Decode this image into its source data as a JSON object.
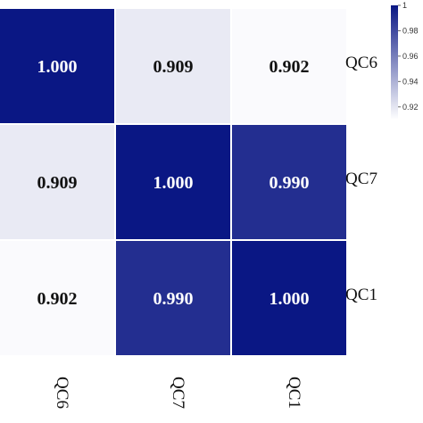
{
  "chart_data": {
    "type": "heatmap",
    "rows": [
      "QC6",
      "QC7",
      "QC1"
    ],
    "columns": [
      "QC6",
      "QC7",
      "QC1"
    ],
    "values": [
      [
        1.0,
        0.909,
        0.902
      ],
      [
        0.909,
        1.0,
        0.99
      ],
      [
        0.902,
        0.99,
        1.0
      ]
    ],
    "value_labels": [
      [
        "1.000",
        "0.909",
        "0.902"
      ],
      [
        "0.909",
        "1.000",
        "0.990"
      ],
      [
        "0.902",
        "0.990",
        "1.000"
      ]
    ],
    "colorscale": {
      "min": 0.9,
      "max": 1.0,
      "low_color": "#ffffff",
      "high_color": "#0a1784",
      "ticks": [
        "1",
        "0.98",
        "0.96",
        "0.94",
        "0.92"
      ],
      "tick_values": [
        1.0,
        0.98,
        0.96,
        0.94,
        0.92
      ],
      "placement": "top-right"
    },
    "row_label_side": "right",
    "column_label_side": "bottom",
    "column_label_rotation": "vertical",
    "light_text_color": "#ffffff",
    "dark_text_color": "#111111"
  }
}
